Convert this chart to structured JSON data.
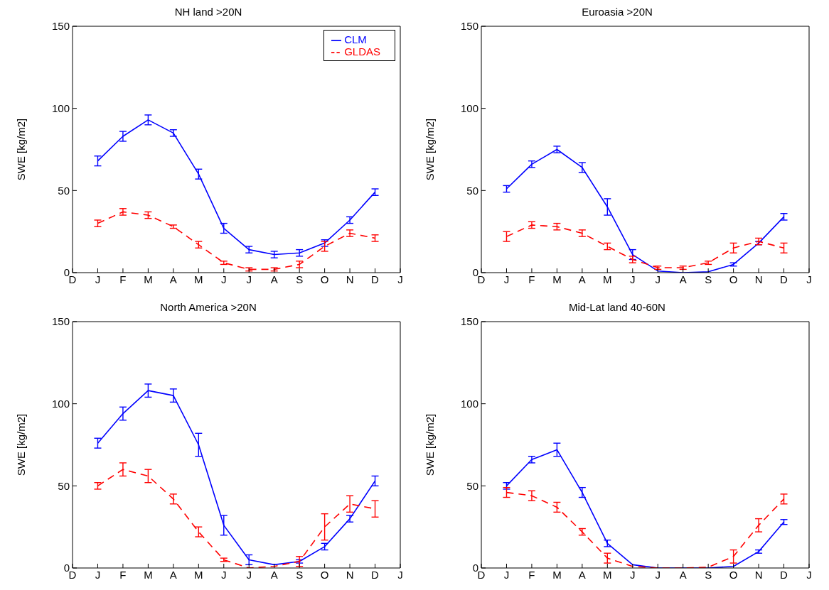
{
  "chart_data": [
    {
      "type": "line",
      "title": "NH land >20N",
      "ylabel": "SWE [kg/m2]",
      "categories": [
        "D",
        "J",
        "F",
        "M",
        "A",
        "M",
        "J",
        "J",
        "A",
        "S",
        "O",
        "N",
        "D",
        "J"
      ],
      "ylim": [
        0,
        150
      ],
      "yticks": [
        0,
        50,
        100,
        150
      ],
      "grid": false,
      "legend": "top right",
      "marker": "none",
      "series": [
        {
          "name": "CLM",
          "color": "#0000ff",
          "line_style": "solid",
          "values": [
            null,
            68,
            83,
            93,
            85,
            60,
            27,
            14,
            11,
            12,
            18,
            32,
            49,
            null
          ],
          "errors": [
            null,
            3,
            3,
            3,
            2,
            3,
            3,
            2,
            2,
            2,
            2,
            2,
            2,
            null
          ]
        },
        {
          "name": "GLDAS",
          "color": "#ff0000",
          "line_style": "dashed",
          "values": [
            null,
            30,
            37,
            35,
            28,
            17,
            6,
            2,
            2,
            5,
            16,
            24,
            21,
            null
          ],
          "errors": [
            null,
            2,
            2,
            2,
            1,
            2,
            1,
            1,
            1,
            2,
            3,
            2,
            2,
            null
          ]
        }
      ]
    },
    {
      "type": "line",
      "title": "Euroasia >20N",
      "ylabel": "SWE [kg/m2]",
      "categories": [
        "D",
        "J",
        "F",
        "M",
        "A",
        "M",
        "J",
        "J",
        "A",
        "S",
        "O",
        "N",
        "D",
        "J"
      ],
      "ylim": [
        0,
        150
      ],
      "yticks": [
        0,
        50,
        100,
        150
      ],
      "grid": false,
      "marker": "none",
      "series": [
        {
          "color": "#0000ff",
          "line_style": "solid",
          "values": [
            null,
            51,
            66,
            75,
            64,
            40,
            11,
            1,
            0,
            0.5,
            5,
            18,
            34,
            null
          ],
          "errors": [
            null,
            2,
            2,
            2,
            3,
            5,
            3,
            null,
            null,
            null,
            1,
            1,
            2,
            null
          ]
        },
        {
          "color": "#ff0000",
          "line_style": "dashed",
          "values": [
            null,
            22,
            29,
            28,
            24,
            16,
            8,
            3,
            3,
            6,
            15,
            19,
            15,
            null
          ],
          "errors": [
            null,
            3,
            2,
            2,
            2,
            2,
            2,
            1,
            1,
            1,
            3,
            2,
            3,
            null
          ]
        }
      ]
    },
    {
      "type": "line",
      "title": "North America >20N",
      "ylabel": "SWE [kg/m2]",
      "categories": [
        "D",
        "J",
        "F",
        "M",
        "A",
        "M",
        "J",
        "J",
        "A",
        "S",
        "O",
        "N",
        "D",
        "J"
      ],
      "ylim": [
        0,
        150
      ],
      "yticks": [
        0,
        50,
        100,
        150
      ],
      "grid": false,
      "marker": "none",
      "series": [
        {
          "color": "#0000ff",
          "line_style": "solid",
          "values": [
            null,
            76,
            94,
            108,
            105,
            75,
            26,
            5,
            2,
            4,
            13,
            30,
            53,
            null
          ],
          "errors": [
            null,
            3,
            4,
            4,
            4,
            7,
            6,
            3,
            null,
            1,
            2,
            2,
            3,
            null
          ]
        },
        {
          "color": "#ff0000",
          "line_style": "dashed",
          "values": [
            null,
            50,
            60,
            56,
            42,
            22,
            5,
            0,
            1,
            4,
            25,
            39,
            36,
            null
          ],
          "errors": [
            null,
            2,
            4,
            4,
            3,
            3,
            1,
            null,
            null,
            3,
            8,
            5,
            5,
            null
          ]
        }
      ]
    },
    {
      "type": "line",
      "title": "Mid-Lat land 40-60N",
      "ylabel": "SWE [kg/m2]",
      "categories": [
        "D",
        "J",
        "F",
        "M",
        "A",
        "M",
        "J",
        "J",
        "A",
        "S",
        "O",
        "N",
        "D",
        "J"
      ],
      "ylim": [
        0,
        150
      ],
      "yticks": [
        0,
        50,
        100,
        150
      ],
      "grid": false,
      "marker": "none",
      "series": [
        {
          "color": "#0000ff",
          "line_style": "solid",
          "values": [
            null,
            50,
            66,
            72,
            46,
            15,
            2,
            0,
            0,
            0,
            1,
            10,
            28,
            null
          ],
          "errors": [
            null,
            2,
            2,
            4,
            3,
            2,
            null,
            null,
            null,
            null,
            null,
            1,
            1.5,
            null
          ]
        },
        {
          "color": "#ff0000",
          "line_style": "dashed",
          "values": [
            null,
            46,
            44,
            37,
            22,
            6,
            1,
            0,
            0,
            0.5,
            7,
            26,
            42,
            null
          ],
          "errors": [
            null,
            3,
            3,
            3,
            2,
            3,
            null,
            null,
            null,
            null,
            4,
            4,
            3,
            null
          ]
        }
      ]
    }
  ]
}
